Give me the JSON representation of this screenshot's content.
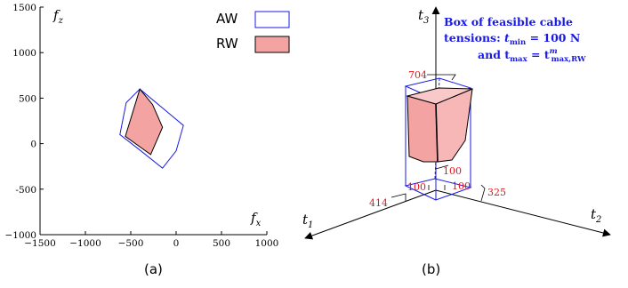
{
  "panel_a": {
    "x_axis_label": "f",
    "x_axis_sub": "x",
    "y_axis_label": "f",
    "y_axis_sub": "z",
    "x_ticks": [
      "−1500",
      "−1000",
      "−500",
      "0",
      "500",
      "1000"
    ],
    "y_ticks": [
      "1500",
      "1000",
      "500",
      "0",
      "-500",
      "−1000"
    ],
    "legend": {
      "aw_label": "AW",
      "rw_label": "RW"
    },
    "caption": "(a)"
  },
  "panel_b": {
    "axis_t1": "t",
    "axis_t1_sub": "1",
    "axis_t2": "t",
    "axis_t2_sub": "2",
    "axis_t3": "t",
    "axis_t3_sub": "3",
    "val_704": "704",
    "val_414": "414",
    "val_325": "325",
    "val_100_center": "100",
    "val_100_left": "100",
    "val_100_right": "100",
    "annotation_line1": "Box of feasible cable",
    "annotation_line2_pre": "tensions: ",
    "annotation_line2_t": "t",
    "annotation_line2_sub": "min",
    "annotation_line2_post": " = 100 N",
    "annotation_line3_pre": "and ",
    "annotation_line3_t": "t",
    "annotation_line3_sub": "max",
    "annotation_line3_eq": " = ",
    "annotation_line3_t2": "t",
    "annotation_line3_sup": "m",
    "annotation_line3_sub2": "max,RW",
    "caption": "(b)"
  },
  "colors": {
    "aw_stroke": "#1a1ae6",
    "rw_fill": "#f4a3a3",
    "red_text": "#e8141d",
    "annotation": "#1a1ae6"
  },
  "chart_data": {
    "type": "scatter",
    "xlim": [
      -1500,
      1000
    ],
    "ylim": [
      -1000,
      1500
    ],
    "series": [
      {
        "name": "AW",
        "polygon": [
          [
            -400,
            600
          ],
          [
            -550,
            450
          ],
          [
            -620,
            100
          ],
          [
            -400,
            -70
          ],
          [
            -150,
            -270
          ],
          [
            0,
            -80
          ],
          [
            80,
            200
          ]
        ]
      },
      {
        "name": "RW",
        "polygon": [
          [
            -400,
            600
          ],
          [
            -560,
            80
          ],
          [
            -280,
            -120
          ],
          [
            -150,
            180
          ],
          [
            -260,
            430
          ]
        ]
      }
    ]
  }
}
